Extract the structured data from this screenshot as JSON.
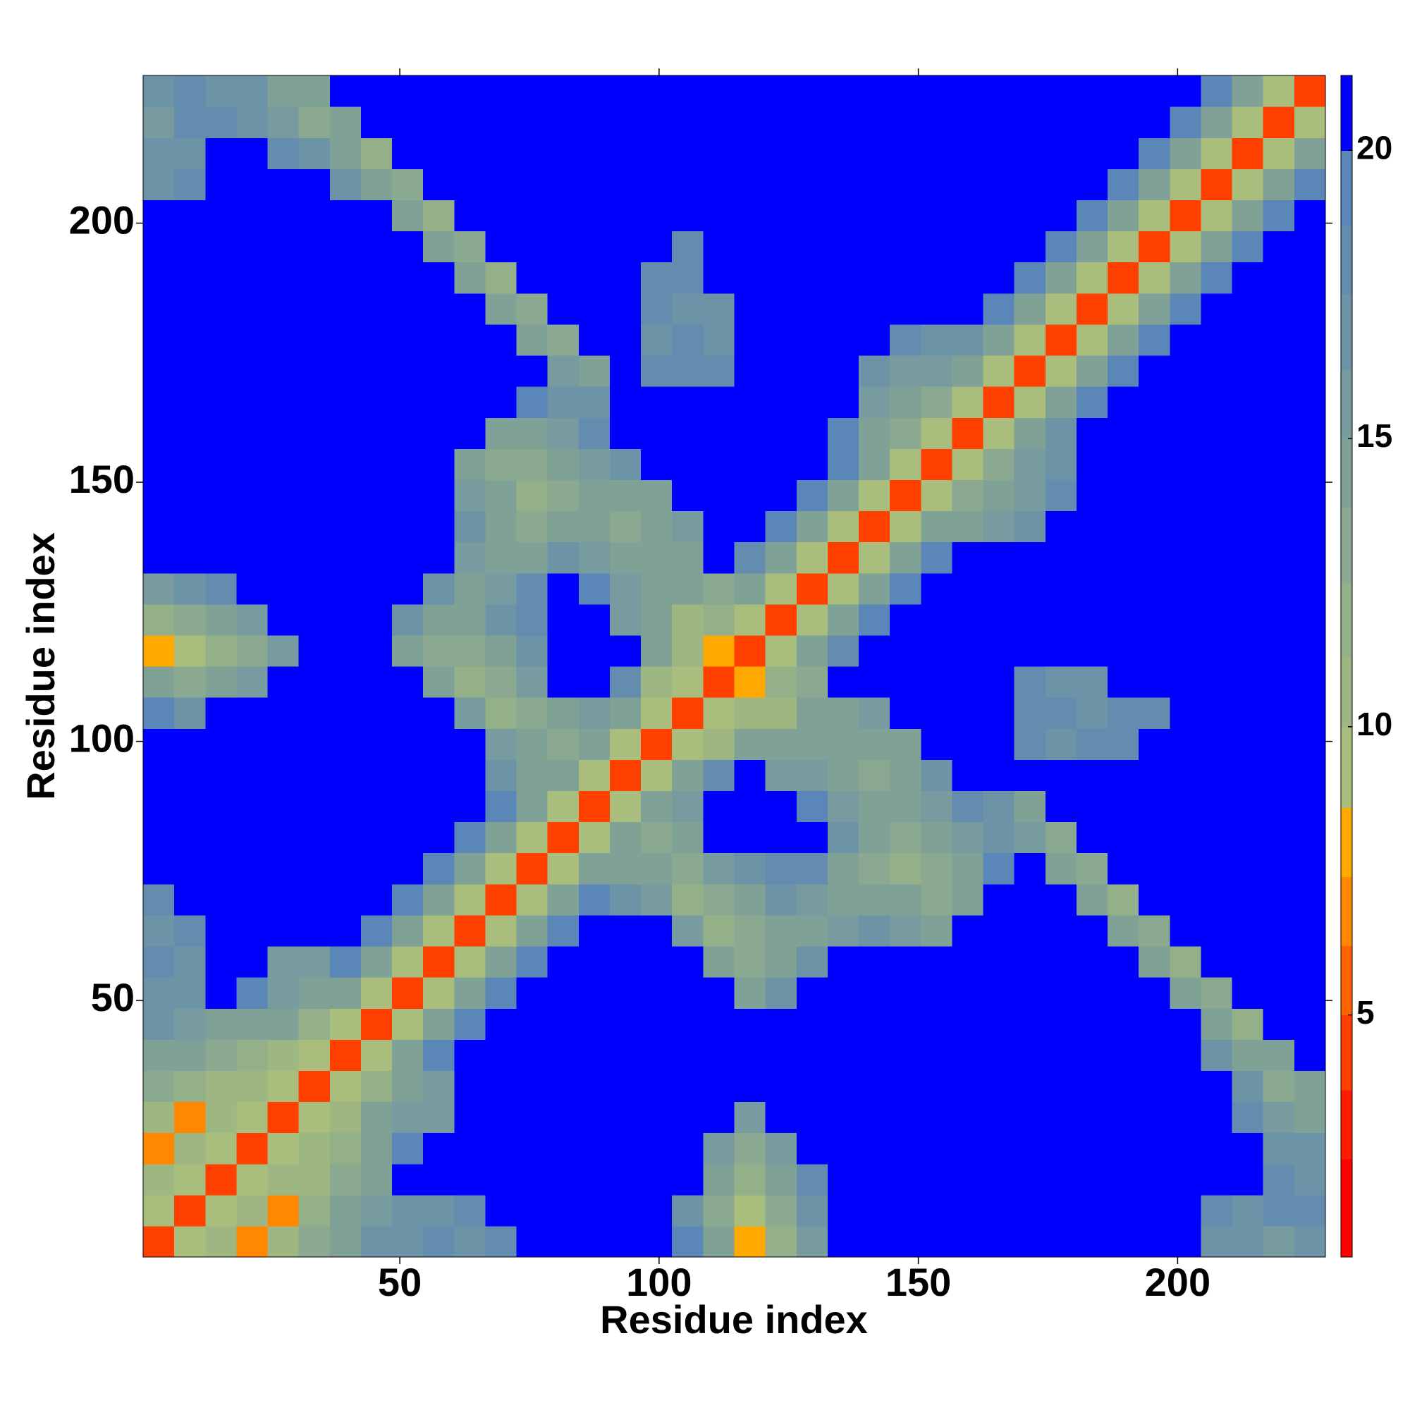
{
  "chart_data": {
    "type": "heatmap",
    "x_label": "Residue index",
    "y_label": "Residue index",
    "x": [
      3.5,
      9.5,
      15.5,
      21.5,
      27.5,
      33.5,
      39.5,
      45.5,
      51.5,
      57.5,
      63.5,
      69.5,
      75.5,
      81.5,
      87.5,
      93.5,
      99.5,
      105.5,
      111.5,
      117.5,
      123.5,
      129.5,
      135.5,
      141.5,
      147.5,
      153.5,
      159.5,
      165.5,
      171.5,
      177.5,
      183.5,
      189.5,
      195.5,
      201.5,
      207.5,
      213.5,
      219.5,
      225.5
    ],
    "y": [
      3.5,
      9.5,
      15.5,
      21.5,
      27.5,
      33.5,
      39.5,
      45.5,
      51.5,
      57.5,
      63.5,
      69.5,
      75.5,
      81.5,
      87.5,
      93.5,
      99.5,
      105.5,
      111.5,
      117.5,
      123.5,
      129.5,
      135.5,
      141.5,
      147.5,
      153.5,
      159.5,
      165.5,
      171.5,
      177.5,
      183.5,
      189.5,
      195.5,
      201.5,
      207.5,
      213.5,
      219.5,
      225.5
    ],
    "xlim": [
      0.5,
      228.5
    ],
    "ylim": [
      0.5,
      228.5
    ],
    "xticks": [
      50,
      100,
      150,
      200
    ],
    "yticks": [
      50,
      100,
      150,
      200
    ],
    "clim": [
      0.8,
      21.3
    ],
    "colorbar_ticks": [
      5,
      10,
      15,
      20
    ],
    "color_levels": [
      2.5,
      3.7,
      5,
      6.2,
      7.4,
      8.6,
      10,
      11.2,
      12.5,
      13.8,
      15,
      16.2,
      17.5,
      18.7,
      20,
      21.3
    ],
    "level_colors": [
      "#ff0000",
      "#ff1c00",
      "#ff4000",
      "#ff6200",
      "#ff8800",
      "#ffa800",
      "#a9bd7c",
      "#9eb782",
      "#94b089",
      "#8aa990",
      "#80a296",
      "#779b9e",
      "#6d93a6",
      "#648cae",
      "#5b86b8",
      "#0000ff"
    ],
    "z": [
      [
        4,
        9,
        11,
        7,
        11,
        13,
        15,
        17,
        17,
        18,
        17,
        18,
        22,
        22,
        22,
        22,
        22,
        19,
        15,
        8,
        12,
        16,
        22,
        22,
        22,
        22,
        22,
        22,
        22,
        22,
        22,
        22,
        22,
        22,
        17,
        17,
        16,
        17
      ],
      [
        9,
        4,
        9,
        11,
        7,
        12,
        14,
        16,
        17,
        17,
        18,
        22,
        22,
        22,
        22,
        22,
        22,
        17,
        13,
        10,
        13,
        17,
        22,
        22,
        22,
        22,
        22,
        22,
        22,
        22,
        22,
        22,
        22,
        22,
        18,
        17,
        18,
        18
      ],
      [
        11,
        9,
        4,
        9,
        11,
        11,
        13,
        15,
        22,
        22,
        22,
        22,
        22,
        22,
        22,
        22,
        22,
        22,
        14,
        12,
        14,
        18,
        22,
        22,
        22,
        22,
        22,
        22,
        22,
        22,
        22,
        22,
        22,
        22,
        22,
        22,
        18,
        17
      ],
      [
        7,
        11,
        9,
        4,
        9,
        11,
        12,
        14,
        19,
        22,
        22,
        22,
        22,
        22,
        22,
        22,
        22,
        22,
        16,
        13,
        16,
        22,
        22,
        22,
        22,
        22,
        22,
        22,
        22,
        22,
        22,
        22,
        22,
        22,
        22,
        22,
        17,
        17
      ],
      [
        11,
        7,
        11,
        9,
        4,
        9,
        11,
        14,
        16,
        16,
        22,
        22,
        22,
        22,
        22,
        22,
        22,
        22,
        22,
        16,
        22,
        22,
        22,
        22,
        22,
        22,
        22,
        22,
        22,
        22,
        22,
        22,
        22,
        22,
        22,
        18,
        16,
        15
      ],
      [
        13,
        12,
        11,
        11,
        9,
        4,
        9,
        12,
        15,
        16,
        22,
        22,
        22,
        22,
        22,
        22,
        22,
        22,
        22,
        22,
        22,
        22,
        22,
        22,
        22,
        22,
        22,
        22,
        22,
        22,
        22,
        22,
        22,
        22,
        22,
        17,
        13,
        15
      ],
      [
        15,
        14,
        13,
        12,
        11,
        9,
        4,
        9,
        14,
        19,
        22,
        22,
        22,
        22,
        22,
        22,
        22,
        22,
        22,
        22,
        22,
        22,
        22,
        22,
        22,
        22,
        22,
        22,
        22,
        22,
        22,
        22,
        22,
        22,
        17,
        14,
        14,
        22
      ],
      [
        17,
        16,
        15,
        14,
        14,
        12,
        9,
        4,
        9,
        14,
        19,
        22,
        22,
        22,
        22,
        22,
        22,
        22,
        22,
        22,
        22,
        22,
        22,
        22,
        22,
        22,
        22,
        22,
        22,
        22,
        22,
        22,
        22,
        22,
        14,
        12,
        22,
        22
      ],
      [
        17,
        17,
        22,
        19,
        16,
        15,
        14,
        9,
        4,
        9,
        14,
        19,
        22,
        22,
        22,
        22,
        22,
        22,
        22,
        15,
        17,
        22,
        22,
        22,
        22,
        22,
        22,
        22,
        22,
        22,
        22,
        22,
        22,
        14,
        13,
        22,
        22,
        22
      ],
      [
        18,
        17,
        22,
        22,
        16,
        16,
        19,
        14,
        9,
        4,
        9,
        14,
        19,
        22,
        22,
        22,
        22,
        22,
        15,
        13,
        15,
        17,
        22,
        22,
        22,
        22,
        22,
        22,
        22,
        22,
        22,
        22,
        14,
        12,
        22,
        22,
        22,
        22
      ],
      [
        17,
        18,
        22,
        22,
        22,
        22,
        22,
        19,
        14,
        9,
        4,
        9,
        14,
        19,
        22,
        22,
        22,
        16,
        12,
        13,
        14,
        15,
        16,
        17,
        16,
        15,
        22,
        22,
        22,
        22,
        22,
        14,
        13,
        22,
        22,
        22,
        22,
        22
      ],
      [
        18,
        22,
        22,
        22,
        22,
        22,
        22,
        22,
        19,
        14,
        9,
        4,
        9,
        14,
        19,
        17,
        16,
        12,
        13,
        15,
        17,
        16,
        15,
        15,
        14,
        13,
        15,
        22,
        22,
        22,
        14,
        12,
        22,
        22,
        22,
        22,
        22,
        22
      ],
      [
        22,
        22,
        22,
        22,
        22,
        22,
        22,
        22,
        22,
        19,
        14,
        9,
        4,
        9,
        14,
        15,
        14,
        13,
        16,
        17,
        18,
        18,
        15,
        13,
        12,
        13,
        15,
        19,
        22,
        15,
        13,
        22,
        22,
        22,
        22,
        22,
        22,
        22
      ],
      [
        22,
        22,
        22,
        22,
        22,
        22,
        22,
        22,
        22,
        22,
        19,
        14,
        9,
        4,
        9,
        14,
        13,
        15,
        22,
        22,
        22,
        22,
        17,
        14,
        13,
        14,
        16,
        17,
        16,
        13,
        22,
        22,
        22,
        22,
        22,
        22,
        22,
        22
      ],
      [
        22,
        22,
        22,
        22,
        22,
        22,
        22,
        22,
        22,
        22,
        22,
        19,
        14,
        9,
        4,
        9,
        14,
        16,
        22,
        22,
        22,
        19,
        16,
        15,
        15,
        16,
        18,
        17,
        14,
        22,
        22,
        22,
        22,
        22,
        22,
        22,
        22,
        22
      ],
      [
        22,
        22,
        22,
        22,
        22,
        22,
        22,
        22,
        22,
        22,
        22,
        17,
        15,
        14,
        9,
        4,
        9,
        14,
        18,
        22,
        16,
        16,
        15,
        13,
        14,
        17,
        22,
        22,
        22,
        22,
        22,
        22,
        22,
        22,
        22,
        22,
        22,
        22
      ],
      [
        22,
        22,
        22,
        22,
        22,
        22,
        22,
        22,
        22,
        22,
        22,
        16,
        14,
        13,
        14,
        9,
        4,
        9,
        11,
        15,
        14,
        15,
        14,
        14,
        15,
        22,
        22,
        22,
        18,
        17,
        18,
        18,
        22,
        22,
        22,
        22,
        22,
        22
      ],
      [
        19,
        17,
        22,
        22,
        22,
        22,
        22,
        22,
        22,
        22,
        16,
        12,
        13,
        15,
        16,
        14,
        9,
        4,
        9,
        11,
        11,
        14,
        15,
        16,
        22,
        22,
        22,
        22,
        18,
        18,
        17,
        18,
        18,
        22,
        22,
        22,
        22,
        22
      ],
      [
        15,
        13,
        14,
        16,
        22,
        22,
        22,
        22,
        22,
        15,
        12,
        13,
        16,
        22,
        22,
        18,
        11,
        9,
        4,
        8,
        12,
        13,
        22,
        22,
        22,
        22,
        22,
        22,
        18,
        17,
        17,
        22,
        22,
        22,
        22,
        22,
        22,
        22
      ],
      [
        8,
        10,
        12,
        13,
        16,
        22,
        22,
        22,
        15,
        13,
        13,
        15,
        17,
        22,
        22,
        22,
        15,
        11,
        8,
        4,
        9,
        14,
        18,
        22,
        22,
        22,
        22,
        22,
        22,
        22,
        22,
        22,
        22,
        22,
        22,
        22,
        22,
        22
      ],
      [
        12,
        13,
        14,
        16,
        22,
        22,
        22,
        22,
        17,
        15,
        14,
        17,
        18,
        22,
        22,
        16,
        14,
        11,
        12,
        9,
        4,
        9,
        14,
        19,
        22,
        22,
        22,
        22,
        22,
        22,
        22,
        22,
        22,
        22,
        22,
        22,
        22,
        22
      ],
      [
        16,
        17,
        18,
        22,
        22,
        22,
        22,
        22,
        22,
        17,
        15,
        16,
        18,
        22,
        19,
        16,
        15,
        14,
        13,
        14,
        9,
        4,
        9,
        14,
        19,
        22,
        22,
        22,
        22,
        22,
        22,
        22,
        22,
        22,
        22,
        22,
        22,
        22
      ],
      [
        22,
        22,
        22,
        22,
        22,
        22,
        22,
        22,
        22,
        22,
        16,
        15,
        15,
        17,
        16,
        15,
        14,
        15,
        22,
        18,
        14,
        9,
        4,
        9,
        14,
        19,
        22,
        22,
        22,
        22,
        22,
        22,
        22,
        22,
        22,
        22,
        22,
        22
      ],
      [
        22,
        22,
        22,
        22,
        22,
        22,
        22,
        22,
        22,
        22,
        17,
        15,
        13,
        14,
        15,
        13,
        14,
        16,
        22,
        22,
        19,
        14,
        9,
        4,
        9,
        14,
        15,
        16,
        17,
        22,
        22,
        22,
        22,
        22,
        22,
        22,
        22,
        22
      ],
      [
        22,
        22,
        22,
        22,
        22,
        22,
        22,
        22,
        22,
        22,
        16,
        14,
        12,
        13,
        15,
        14,
        15,
        22,
        22,
        22,
        22,
        19,
        14,
        9,
        4,
        9,
        13,
        15,
        16,
        18,
        22,
        22,
        22,
        22,
        22,
        22,
        22,
        22
      ],
      [
        22,
        22,
        22,
        22,
        22,
        22,
        22,
        22,
        22,
        22,
        15,
        13,
        13,
        14,
        16,
        17,
        22,
        22,
        22,
        22,
        22,
        22,
        19,
        14,
        9,
        4,
        9,
        13,
        16,
        17,
        22,
        22,
        22,
        22,
        22,
        22,
        22,
        22
      ],
      [
        22,
        22,
        22,
        22,
        22,
        22,
        22,
        22,
        22,
        22,
        22,
        15,
        15,
        16,
        18,
        22,
        22,
        22,
        22,
        22,
        22,
        22,
        19,
        15,
        13,
        9,
        4,
        9,
        14,
        17,
        22,
        22,
        22,
        22,
        22,
        22,
        22,
        22
      ],
      [
        22,
        22,
        22,
        22,
        22,
        22,
        22,
        22,
        22,
        22,
        22,
        22,
        19,
        17,
        17,
        22,
        22,
        22,
        22,
        22,
        22,
        22,
        22,
        16,
        15,
        13,
        9,
        4,
        9,
        14,
        19,
        22,
        22,
        22,
        22,
        22,
        22,
        22
      ],
      [
        22,
        22,
        22,
        22,
        22,
        22,
        22,
        22,
        22,
        22,
        22,
        22,
        22,
        16,
        14,
        22,
        18,
        18,
        18,
        22,
        22,
        22,
        22,
        17,
        16,
        16,
        14,
        9,
        4,
        9,
        14,
        19,
        22,
        22,
        22,
        22,
        22,
        22
      ],
      [
        22,
        22,
        22,
        22,
        22,
        22,
        22,
        22,
        22,
        22,
        22,
        22,
        15,
        13,
        22,
        22,
        17,
        18,
        17,
        22,
        22,
        22,
        22,
        22,
        18,
        17,
        17,
        14,
        9,
        4,
        9,
        14,
        19,
        22,
        22,
        22,
        22,
        22
      ],
      [
        22,
        22,
        22,
        22,
        22,
        22,
        22,
        22,
        22,
        22,
        22,
        14,
        13,
        22,
        22,
        22,
        18,
        17,
        17,
        22,
        22,
        22,
        22,
        22,
        22,
        22,
        22,
        19,
        14,
        9,
        4,
        9,
        14,
        19,
        22,
        22,
        22,
        22
      ],
      [
        22,
        22,
        22,
        22,
        22,
        22,
        22,
        22,
        22,
        22,
        14,
        12,
        22,
        22,
        22,
        22,
        18,
        18,
        22,
        22,
        22,
        22,
        22,
        22,
        22,
        22,
        22,
        22,
        19,
        14,
        9,
        4,
        9,
        14,
        19,
        22,
        22,
        22
      ],
      [
        22,
        22,
        22,
        22,
        22,
        22,
        22,
        22,
        22,
        14,
        13,
        22,
        22,
        22,
        22,
        22,
        22,
        18,
        22,
        22,
        22,
        22,
        22,
        22,
        22,
        22,
        22,
        22,
        22,
        19,
        14,
        9,
        4,
        9,
        14,
        19,
        22,
        22
      ],
      [
        22,
        22,
        22,
        22,
        22,
        22,
        22,
        22,
        14,
        12,
        22,
        22,
        22,
        22,
        22,
        22,
        22,
        22,
        22,
        22,
        22,
        22,
        22,
        22,
        22,
        22,
        22,
        22,
        22,
        22,
        19,
        14,
        9,
        4,
        9,
        14,
        19,
        22
      ],
      [
        17,
        18,
        22,
        22,
        22,
        22,
        17,
        14,
        13,
        22,
        22,
        22,
        22,
        22,
        22,
        22,
        22,
        22,
        22,
        22,
        22,
        22,
        22,
        22,
        22,
        22,
        22,
        22,
        22,
        22,
        22,
        19,
        14,
        9,
        4,
        9,
        14,
        19
      ],
      [
        17,
        17,
        22,
        22,
        18,
        17,
        14,
        12,
        22,
        22,
        22,
        22,
        22,
        22,
        22,
        22,
        22,
        22,
        22,
        22,
        22,
        22,
        22,
        22,
        22,
        22,
        22,
        22,
        22,
        22,
        22,
        22,
        19,
        14,
        9,
        4,
        9,
        14
      ],
      [
        16,
        18,
        18,
        17,
        16,
        13,
        14,
        22,
        22,
        22,
        22,
        22,
        22,
        22,
        22,
        22,
        22,
        22,
        22,
        22,
        22,
        22,
        22,
        22,
        22,
        22,
        22,
        22,
        22,
        22,
        22,
        22,
        22,
        19,
        14,
        9,
        4,
        9
      ],
      [
        17,
        18,
        17,
        17,
        15,
        15,
        22,
        22,
        22,
        22,
        22,
        22,
        22,
        22,
        22,
        22,
        22,
        22,
        22,
        22,
        22,
        22,
        22,
        22,
        22,
        22,
        22,
        22,
        22,
        22,
        22,
        22,
        22,
        22,
        19,
        14,
        9,
        4
      ]
    ]
  }
}
